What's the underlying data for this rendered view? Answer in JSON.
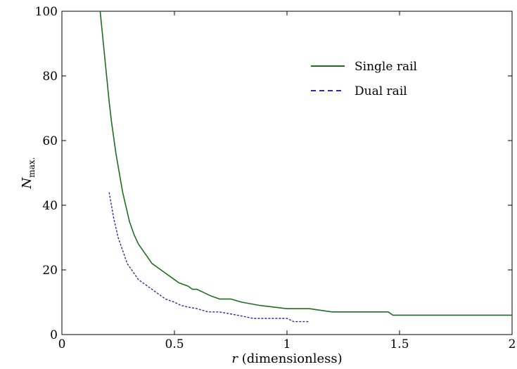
{
  "chart_data": {
    "type": "line",
    "xlabel_var": "r",
    "xlabel_rest": " (dimensionless)",
    "ylabel_var": "N",
    "ylabel_sub": "max.",
    "xlim": [
      0,
      2
    ],
    "ylim": [
      0,
      100
    ],
    "xticks": [
      0,
      0.5,
      1,
      1.5,
      2
    ],
    "xtick_labels": [
      "0",
      "0.5",
      "1",
      "1.5",
      "2"
    ],
    "yticks": [
      0,
      20,
      40,
      60,
      80,
      100
    ],
    "ytick_labels": [
      "0",
      "20",
      "40",
      "60",
      "80",
      "100"
    ],
    "grid": false,
    "legend_position": "top-right",
    "series": [
      {
        "name": "Single rail",
        "color": "#1f6e1f",
        "style": "solid",
        "x": [
          0.17,
          0.18,
          0.19,
          0.2,
          0.21,
          0.22,
          0.23,
          0.24,
          0.25,
          0.26,
          0.27,
          0.28,
          0.29,
          0.3,
          0.32,
          0.34,
          0.36,
          0.38,
          0.4,
          0.42,
          0.44,
          0.46,
          0.48,
          0.5,
          0.52,
          0.54,
          0.56,
          0.58,
          0.6,
          0.63,
          0.66,
          0.7,
          0.75,
          0.8,
          0.88,
          1.0,
          1.1,
          1.2,
          1.3,
          1.45,
          1.47,
          1.6,
          1.8,
          2.0
        ],
        "y": [
          100,
          93,
          86,
          79,
          72,
          66,
          61,
          56,
          52,
          48,
          44,
          41,
          38,
          35,
          31,
          28,
          26,
          24,
          22,
          21,
          20,
          19,
          18,
          17,
          16,
          15.5,
          15,
          14,
          14,
          13,
          12,
          11,
          11,
          10,
          9,
          8,
          8,
          7,
          7,
          7,
          6,
          6,
          6,
          6
        ]
      },
      {
        "name": "Dual rail",
        "color": "#2d2d9e",
        "style": "dashed",
        "x": [
          0.21,
          0.22,
          0.23,
          0.24,
          0.25,
          0.26,
          0.27,
          0.28,
          0.29,
          0.3,
          0.32,
          0.34,
          0.36,
          0.38,
          0.4,
          0.42,
          0.44,
          0.46,
          0.48,
          0.5,
          0.53,
          0.56,
          0.6,
          0.65,
          0.7,
          0.78,
          0.85,
          0.95,
          1.0,
          1.03,
          1.1
        ],
        "y": [
          44,
          40,
          36,
          33,
          30,
          28,
          26,
          24,
          22,
          21,
          19,
          17,
          16,
          15,
          14,
          13,
          12,
          11,
          10.5,
          10,
          9,
          8.5,
          8,
          7,
          7,
          6,
          5,
          5,
          5,
          4,
          4
        ]
      }
    ]
  }
}
